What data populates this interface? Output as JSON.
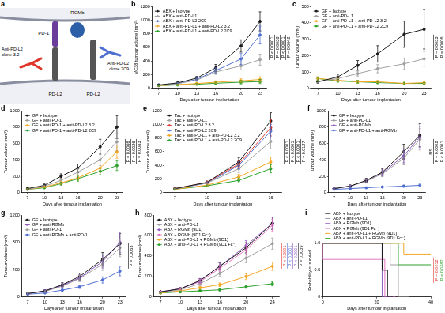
{
  "diagram": {
    "panel": "a",
    "labels": {
      "pd1": "PD-1",
      "rgmb": "RGMb",
      "antibody_left": "Anti-PD-L2 clone 3.2",
      "antibody_right": "Anti-PD-L2 clone 2C9",
      "pdl2_left": "PD-L2",
      "pdl2_right": "PD-L2"
    }
  },
  "chart_data": [
    {
      "panel": "b",
      "type": "line",
      "marker": "circle",
      "grid": false,
      "legend": "upper left",
      "x_label": "Days after tumour implantation",
      "y_label": "MC38 tumour volume (mm³)",
      "x": [
        7,
        10,
        13,
        16,
        20,
        23
      ],
      "xlim": [
        6,
        24
      ],
      "xticks": [
        7,
        10,
        13,
        16,
        20,
        23
      ],
      "ylim": [
        0,
        1200
      ],
      "yticks": [
        0,
        200,
        400,
        600,
        800,
        1000,
        1200
      ],
      "series": [
        {
          "name": "ABX + Isotype",
          "color": "#1a1a1a",
          "values": [
            50,
            80,
            150,
            300,
            620,
            980
          ],
          "errors": [
            8,
            12,
            25,
            50,
            90,
            140
          ]
        },
        {
          "name": "ABX + anti-PD-L1",
          "color": "#a0a0a0",
          "values": [
            45,
            70,
            120,
            240,
            330,
            420
          ],
          "errors": [
            6,
            10,
            18,
            35,
            60,
            80
          ]
        },
        {
          "name": "ABX + anti-PD-L2 2C9",
          "color": "#4f6fd1",
          "values": [
            45,
            70,
            130,
            260,
            430,
            780
          ],
          "errors": [
            6,
            10,
            20,
            40,
            80,
            130
          ]
        },
        {
          "name": "ABX + anti-PD-L1 + anti-PD-L2 3.2",
          "color": "#f5a623",
          "values": [
            40,
            55,
            70,
            90,
            110,
            130
          ],
          "errors": [
            5,
            8,
            12,
            20,
            30,
            40
          ]
        },
        {
          "name": "ABX + anti-PD-L1 + anti-PD-L2 2C9",
          "color": "#2ca02c",
          "values": [
            40,
            50,
            60,
            75,
            90,
            100
          ],
          "errors": [
            5,
            8,
            10,
            15,
            25,
            30
          ]
        }
      ],
      "annotations": [
        {
          "text": "P < 0.0001"
        },
        {
          "text": "P = 0.0038"
        },
        {
          "text": "P < 0.0001"
        },
        {
          "text": "P = 0.0042"
        }
      ]
    },
    {
      "panel": "c",
      "type": "line",
      "marker": "circle",
      "grid": false,
      "legend": "upper left",
      "x_label": "Days after tumour implantation",
      "y_label": "Tumour volume (mm³)",
      "x": [
        7,
        10,
        13,
        16,
        20,
        23
      ],
      "xlim": [
        6,
        24
      ],
      "xticks": [
        7,
        10,
        13,
        16,
        20,
        23
      ],
      "ylim": [
        0,
        500
      ],
      "yticks": [
        0,
        100,
        200,
        300,
        400,
        500
      ],
      "series": [
        {
          "name": "GF + Isotype",
          "color": "#1a1a1a",
          "values": [
            40,
            70,
            140,
            210,
            330,
            360
          ],
          "errors": [
            8,
            15,
            30,
            50,
            80,
            120
          ]
        },
        {
          "name": "GF + anti-PD-L1",
          "color": "#a0a0a0",
          "values": [
            40,
            60,
            90,
            120,
            150,
            180
          ],
          "errors": [
            6,
            10,
            15,
            25,
            35,
            45
          ]
        },
        {
          "name": "GF + anti-PD-L1 + anti-PD-L2 3.2",
          "color": "#f5a623",
          "values": [
            60,
            50,
            40,
            40,
            30,
            35
          ],
          "errors": [
            10,
            10,
            8,
            8,
            6,
            8
          ]
        },
        {
          "name": "GF + anti-PD-L1 + anti-PD-L2 2C9",
          "color": "#2ca02c",
          "values": [
            60,
            45,
            40,
            35,
            30,
            30
          ],
          "errors": [
            10,
            8,
            8,
            6,
            6,
            6
          ]
        }
      ],
      "annotations": [
        {
          "text": "P = 0.0033"
        },
        {
          "text": "P = 0.0006"
        }
      ]
    },
    {
      "panel": "d",
      "type": "line",
      "marker": "circle",
      "grid": false,
      "legend": "upper left",
      "x_label": "Days after tumour implantation",
      "y_label": "Tumour volume (mm³)",
      "x": [
        7,
        10,
        13,
        16,
        20,
        23
      ],
      "xlim": [
        6,
        24
      ],
      "xticks": [
        7,
        10,
        13,
        16,
        20,
        23
      ],
      "ylim": [
        0,
        1000
      ],
      "yticks": [
        0,
        200,
        400,
        600,
        800,
        1000
      ],
      "series": [
        {
          "name": "GF + Isotype",
          "color": "#1a1a1a",
          "values": [
            50,
            90,
            200,
            300,
            560,
            800
          ],
          "errors": [
            8,
            15,
            30,
            50,
            90,
            140
          ]
        },
        {
          "name": "GF + anti-PD-1",
          "color": "#a0a0a0",
          "values": [
            40,
            80,
            150,
            250,
            400,
            620
          ],
          "errors": [
            6,
            12,
            25,
            40,
            70,
            110
          ]
        },
        {
          "name": "GF + anti-PD-1 + anti-PD-L2 3.2",
          "color": "#f5a623",
          "values": [
            40,
            70,
            120,
            180,
            300,
            500
          ],
          "errors": [
            6,
            10,
            20,
            30,
            50,
            80
          ]
        },
        {
          "name": "GF + anti-PD-1 + anti-PD-L2 2C9",
          "color": "#2ca02c",
          "values": [
            40,
            60,
            110,
            170,
            260,
            330
          ],
          "errors": [
            6,
            10,
            18,
            30,
            40,
            60
          ]
        }
      ],
      "annotations": [
        {
          "text": "P = 0.0066"
        },
        {
          "text": "P = 0.0026"
        },
        {
          "text": "P = 0.0083"
        }
      ]
    },
    {
      "panel": "e",
      "type": "line",
      "marker": "circle",
      "grid": false,
      "legend": "upper left",
      "x_label": "Days after tumour implantation",
      "y_label": "Tumour volume (mm³)",
      "x": [
        7,
        10,
        13,
        16
      ],
      "xlim": [
        6,
        17
      ],
      "xticks": [
        7,
        10,
        13,
        16
      ],
      "ylim": [
        0,
        1200
      ],
      "yticks": [
        0,
        200,
        400,
        600,
        800,
        1000,
        1200
      ],
      "series": [
        {
          "name": "Tac + Isotype",
          "color": "#1a1a1a",
          "values": [
            60,
            150,
            450,
            1050
          ],
          "errors": [
            8,
            20,
            60,
            120
          ]
        },
        {
          "name": "Tac + anti-PD-L1",
          "color": "#a0a0a0",
          "values": [
            60,
            140,
            350,
            750
          ],
          "errors": [
            8,
            20,
            55,
            110
          ]
        },
        {
          "name": "Tac + anti-PD-L2 3.2",
          "color": "#e0352b",
          "values": [
            60,
            150,
            420,
            950
          ],
          "errors": [
            8,
            20,
            50,
            120
          ]
        },
        {
          "name": "Tac + anti-PD-L2 2C9",
          "color": "#4f6fd1",
          "values": [
            55,
            140,
            400,
            900
          ],
          "errors": [
            8,
            18,
            50,
            100
          ]
        },
        {
          "name": "Tac + anti-PD-L1 + anti-PD-L2 3.2",
          "color": "#f5a623",
          "values": [
            50,
            110,
            230,
            450
          ],
          "errors": [
            6,
            15,
            40,
            70
          ]
        },
        {
          "name": "Tac + anti-PD-L1 + anti-PD-L2 2C9",
          "color": "#2ca02c",
          "values": [
            50,
            100,
            180,
            350
          ],
          "errors": [
            6,
            12,
            35,
            60
          ]
        }
      ],
      "annotations": [
        {
          "text": "P < 0.0001"
        },
        {
          "text": "P < 0.0001"
        },
        {
          "text": "P < 0.0001"
        },
        {
          "text": "P = 0.0127"
        }
      ]
    },
    {
      "panel": "f",
      "type": "line",
      "marker": "circle",
      "grid": false,
      "legend": "upper left",
      "x_label": "Days after tumour implantation",
      "y_label": "Tumour volume (mm³)",
      "x": [
        7,
        10,
        13,
        16,
        20,
        23
      ],
      "xlim": [
        6,
        24
      ],
      "xticks": [
        7,
        10,
        13,
        16,
        20,
        23
      ],
      "ylim": [
        0,
        1000
      ],
      "yticks": [
        0,
        200,
        400,
        600,
        800,
        1000
      ],
      "series": [
        {
          "name": "GF + Isotype",
          "color": "#1a1a1a",
          "values": [
            50,
            80,
            150,
            250,
            500,
            700
          ],
          "errors": [
            8,
            12,
            25,
            40,
            90,
            140
          ]
        },
        {
          "name": "GF + anti-PD-L1",
          "color": "#a0a0a0",
          "values": [
            50,
            80,
            140,
            230,
            420,
            650
          ],
          "errors": [
            8,
            12,
            22,
            35,
            80,
            130
          ]
        },
        {
          "name": "GF + anti-RGMb",
          "color": "#8e5bc0",
          "values": [
            50,
            80,
            140,
            240,
            450,
            680
          ],
          "errors": [
            8,
            12,
            22,
            38,
            85,
            130
          ]
        },
        {
          "name": "GF + anti-PD-L1 + anti-RGMb",
          "color": "#4f6fd1",
          "values": [
            40,
            50,
            60,
            70,
            80,
            90
          ],
          "errors": [
            6,
            8,
            8,
            10,
            12,
            15
          ]
        }
      ],
      "annotations": [
        {
          "text": "NS"
        },
        {
          "text": "P = 0.0002"
        },
        {
          "text": "P < 0.0001"
        }
      ]
    },
    {
      "panel": "g",
      "type": "line",
      "marker": "circle",
      "grid": false,
      "legend": "upper left",
      "x_label": "Days after tumour implantation",
      "y_label": "Tumour volume (mm³)",
      "x": [
        7,
        10,
        13,
        16,
        20,
        23
      ],
      "xlim": [
        6,
        24
      ],
      "xticks": [
        7,
        10,
        13,
        16,
        20,
        23
      ],
      "ylim": [
        0,
        1200
      ],
      "yticks": [
        0,
        400,
        800,
        1200
      ],
      "series": [
        {
          "name": "GF + Isotype",
          "color": "#1a1a1a",
          "values": [
            50,
            90,
            180,
            300,
            550,
            780
          ],
          "errors": [
            8,
            15,
            30,
            50,
            100,
            150
          ]
        },
        {
          "name": "GF + anti-RGMb",
          "color": "#8e5bc0",
          "values": [
            50,
            90,
            170,
            280,
            520,
            800
          ],
          "errors": [
            8,
            15,
            28,
            45,
            95,
            150
          ]
        },
        {
          "name": "GF + anti-PD-1",
          "color": "#a0a0a0",
          "values": [
            50,
            80,
            160,
            270,
            480,
            720
          ],
          "errors": [
            8,
            12,
            25,
            45,
            90,
            130
          ]
        },
        {
          "name": "GF + anti-RGMb + anti-PD-1",
          "color": "#4f6fd1",
          "values": [
            40,
            60,
            100,
            150,
            250,
            380
          ],
          "errors": [
            6,
            10,
            18,
            25,
            45,
            70
          ]
        }
      ],
      "annotations": [
        {
          "text": "P = 0.0063"
        }
      ]
    },
    {
      "panel": "h",
      "type": "line",
      "marker": "circle",
      "grid": false,
      "legend": "upper left",
      "x_label": "Days after tumour implantation",
      "y_label": "Tumour volume (mm³)",
      "x": [
        7,
        10,
        13,
        16,
        20,
        24
      ],
      "xlim": [
        6,
        25
      ],
      "xticks": [
        7,
        10,
        13,
        16,
        20,
        24
      ],
      "ylim": [
        0,
        800
      ],
      "yticks": [
        0,
        200,
        400,
        600,
        800
      ],
      "series": [
        {
          "name": "ABX + Isotype",
          "color": "#1a1a1a",
          "values": [
            50,
            80,
            160,
            300,
            480,
            720
          ],
          "errors": [
            6,
            10,
            20,
            35,
            50,
            60
          ]
        },
        {
          "name": "ABX + anti-PD-L1",
          "color": "#a0a0a0",
          "values": [
            45,
            70,
            130,
            230,
            380,
            520
          ],
          "errors": [
            6,
            10,
            18,
            30,
            45,
            55
          ]
        },
        {
          "name": "ABX + RGMb (9D1)",
          "color": "#8e5bc0",
          "values": [
            50,
            80,
            160,
            300,
            500,
            720
          ],
          "errors": [
            6,
            10,
            20,
            35,
            50,
            60
          ]
        },
        {
          "name": "ABX + RGMb (9D1 Fc⁻)",
          "color": "#e377c2",
          "values": [
            50,
            80,
            150,
            280,
            460,
            700
          ],
          "errors": [
            6,
            10,
            20,
            30,
            50,
            60
          ]
        },
        {
          "name": "ABX + anti-PD-L1 + RGMb (9D1)",
          "color": "#f5a623",
          "values": [
            40,
            60,
            90,
            120,
            200,
            300
          ],
          "errors": [
            5,
            8,
            12,
            18,
            30,
            40
          ]
        },
        {
          "name": "ABX + anti-PD-L1 + RGMb (9D1 Fc⁻)",
          "color": "#2ca02c",
          "values": [
            40,
            50,
            60,
            70,
            100,
            130
          ],
          "errors": [
            5,
            6,
            8,
            10,
            15,
            20
          ]
        }
      ],
      "annotations": [
        {
          "text": "P < 0.0001",
          "color": "#e0352b"
        },
        {
          "text": "P < 0.0001",
          "color": "#4f6fd1"
        },
        {
          "text": "P < 0.0001",
          "color": "#8e5bc0"
        },
        {
          "text": "P = 0.0039",
          "color": "#1a1a1a"
        }
      ]
    },
    {
      "panel": "i",
      "type": "line",
      "marker": "none",
      "line_style": "step",
      "grid": false,
      "legend": "top",
      "x_label": "Days after tumour implantation",
      "y_label": "Probability of survival",
      "xlim": [
        0,
        40
      ],
      "xticks": [
        0,
        20,
        40
      ],
      "ylim": [
        0,
        1
      ],
      "yticks": [
        0,
        0.5,
        {
          "value": 1,
          "label": "1.0"
        }
      ],
      "series": [
        {
          "name": "ABX + Isotype",
          "color": "#1a1a1a",
          "x": [
            0,
            22,
            24,
            26
          ],
          "values": [
            1,
            1,
            0.5,
            0
          ]
        },
        {
          "name": "ABX + anti-PD-L1",
          "color": "#a0a0a0",
          "x": [
            0,
            25,
            28,
            32
          ],
          "values": [
            1,
            1,
            0.6,
            0
          ]
        },
        {
          "name": "ABX + RGMb (9D1)",
          "color": "#8e5bc0",
          "x": [
            0,
            22,
            26
          ],
          "values": [
            1,
            1,
            0
          ]
        },
        {
          "name": "ABX + RGMb (9D1 Fc⁻)",
          "color": "#e377c2",
          "x": [
            0,
            23,
            27
          ],
          "values": [
            1,
            0.7,
            0
          ]
        },
        {
          "name": "ABX + anti-PD-L1 + RGMb (9D1)",
          "color": "#f5a623",
          "x": [
            0,
            30,
            35,
            40
          ],
          "values": [
            1,
            1,
            0.8,
            0.8
          ]
        },
        {
          "name": "ABX + anti-PD-L1 + RGMb (9D1 Fc⁻)",
          "color": "#2ca02c",
          "x": [
            0,
            28,
            33,
            40
          ],
          "values": [
            1,
            1,
            0.6,
            0.6
          ]
        }
      ],
      "annotations": [
        {
          "text": "P = 0.0012",
          "color": "#e0352b"
        },
        {
          "text": "P = 0.0482",
          "color": "#2ca02c"
        }
      ]
    }
  ]
}
